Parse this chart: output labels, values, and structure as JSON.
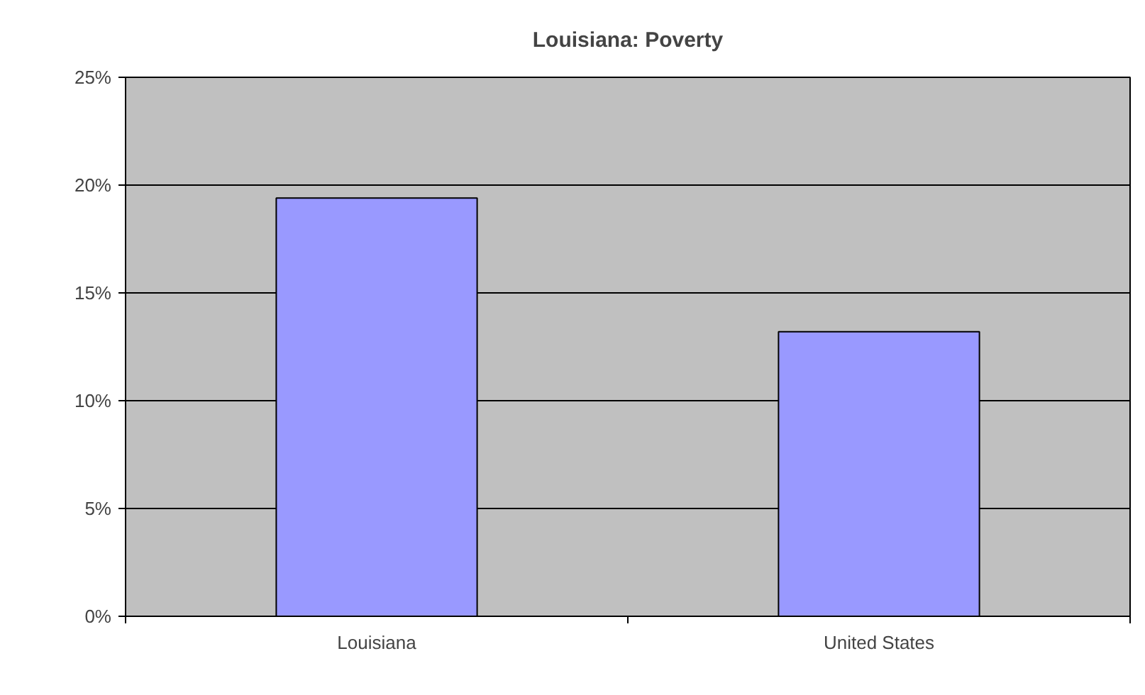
{
  "chart_data": {
    "type": "bar",
    "title": "Louisiana: Poverty",
    "categories": [
      "Louisiana",
      "United States"
    ],
    "values": [
      19.4,
      13.2
    ],
    "color": "#9999ff",
    "ylim": [
      0,
      25
    ],
    "yticks": [
      {
        "value": 0,
        "label": "0%"
      },
      {
        "value": 5,
        "label": "5%"
      },
      {
        "value": 10,
        "label": "10%"
      },
      {
        "value": 15,
        "label": "15%"
      },
      {
        "value": 20,
        "label": "20%"
      },
      {
        "value": 25,
        "label": "25%"
      }
    ],
    "grid": "y"
  }
}
